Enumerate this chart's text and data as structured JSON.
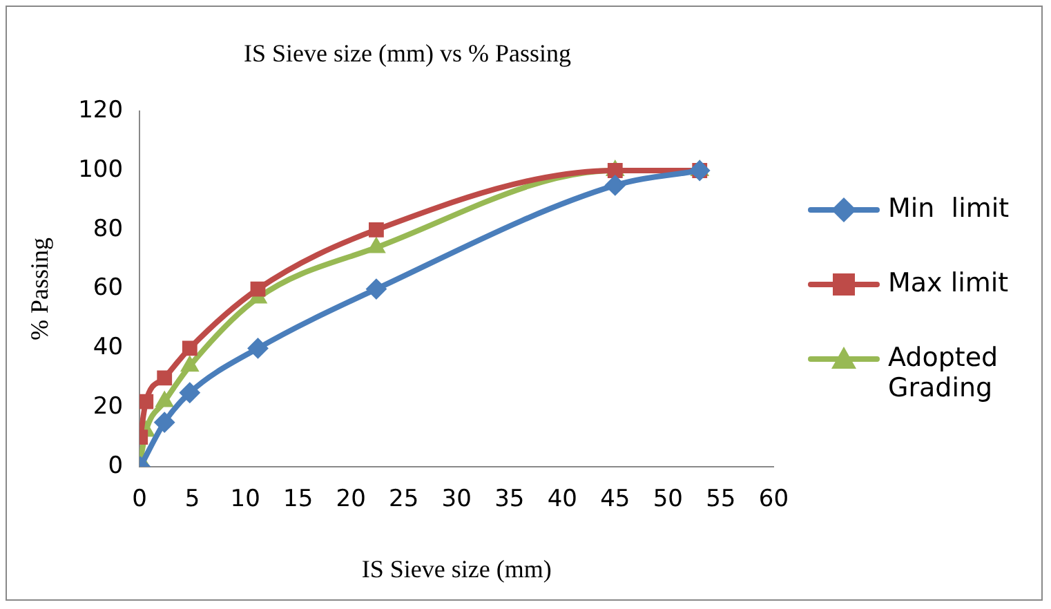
{
  "chart_data": {
    "type": "line",
    "title": "IS Sieve size (mm) vs % Passing",
    "xlabel": "IS Sieve size (mm)",
    "ylabel": "% Passing",
    "series": [
      {
        "name": "Min  limit",
        "color": "#4a7ebb",
        "marker": "diamond",
        "x": [
          0.075,
          2.36,
          4.75,
          11.2,
          22.4,
          45,
          53
        ],
        "values": [
          0,
          15,
          25,
          40,
          60,
          95,
          100
        ]
      },
      {
        "name": "Max limit",
        "color": "#be4b48",
        "marker": "square",
        "x": [
          0.075,
          0.6,
          2.36,
          4.75,
          11.2,
          22.4,
          45,
          53
        ],
        "values": [
          10,
          22,
          30,
          40,
          60,
          80,
          100,
          100
        ]
      },
      {
        "name": "Adopted Grading",
        "color": "#98b954",
        "marker": "triangle",
        "x": [
          0.075,
          0.6,
          2.36,
          4.75,
          11.2,
          22.4,
          45,
          53
        ],
        "values": [
          2,
          12,
          22,
          34,
          57,
          74,
          100,
          100
        ]
      }
    ],
    "xlim": [
      0,
      60
    ],
    "xticks": [
      0,
      5,
      10,
      15,
      20,
      25,
      30,
      35,
      40,
      45,
      50,
      55,
      60
    ],
    "ylim": [
      0,
      120
    ],
    "yticks": [
      0,
      20,
      40,
      60,
      80,
      100,
      120
    ],
    "grid": false,
    "legend": "right",
    "line_style": "solid"
  }
}
